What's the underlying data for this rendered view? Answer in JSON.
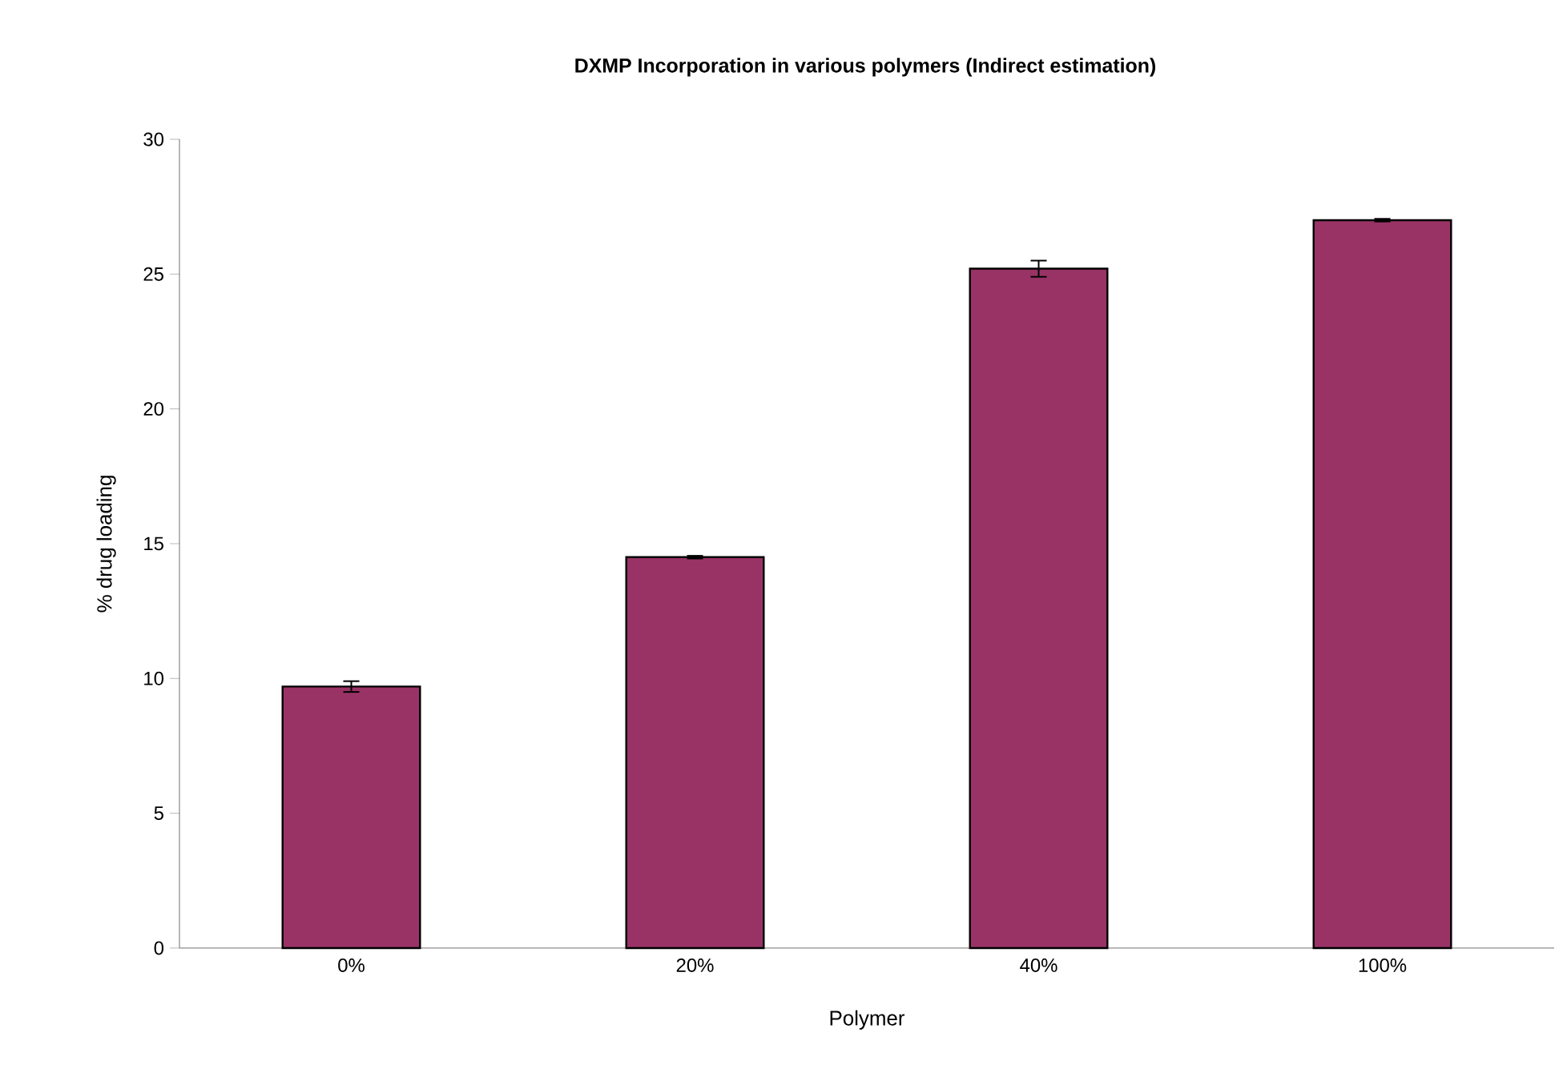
{
  "chart_data": {
    "type": "bar",
    "title": "DXMP Incorporation in various polymers (Indirect estimation)",
    "xlabel": "Polymer",
    "ylabel": "% drug loading",
    "categories": [
      "0%",
      "20%",
      "40%",
      "100%"
    ],
    "values": [
      9.7,
      14.5,
      25.2,
      27.0
    ],
    "errors": [
      0.2,
      0.05,
      0.3,
      0.05
    ],
    "color": "#993366",
    "ylim": [
      0,
      30
    ],
    "yticks": [
      0,
      5,
      10,
      15,
      20,
      25,
      30
    ],
    "grid": false
  }
}
